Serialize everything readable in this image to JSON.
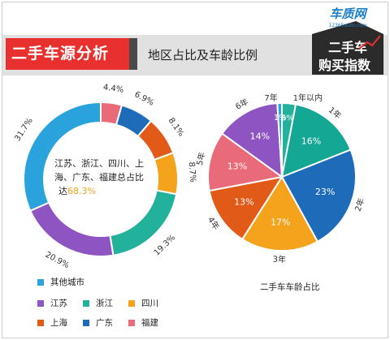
{
  "header": {
    "title": "二手车源分析",
    "subtitle": "地区占比及车龄比例"
  },
  "logo": {
    "brand": "车质网",
    "url": "12365auto.com",
    "line1": "二手车",
    "line2": "购买指数",
    "accent": "#e8312f"
  },
  "center_text": {
    "line1": "江苏、浙江、四川、上",
    "line2": "海、广东、福建总占比",
    "line3_prefix": "达",
    "line3_value": "68.3%",
    "value_color": "#f5a21c"
  },
  "legend": {
    "items": [
      {
        "label": "其他城市",
        "color": "#2aa3dc"
      },
      {
        "label": "江苏",
        "color": "#8e55c2"
      },
      {
        "label": "浙江",
        "color": "#22b19a"
      },
      {
        "label": "四川",
        "color": "#f5a21c"
      },
      {
        "label": "上海",
        "color": "#e25a17"
      },
      {
        "label": "广东",
        "color": "#1d6bb9"
      },
      {
        "label": "福建",
        "color": "#e96a78"
      }
    ]
  },
  "right_caption": "二手车车龄占比",
  "chart_data": [
    {
      "type": "pie",
      "variant": "donut",
      "categories": [
        "福建",
        "广东",
        "上海",
        "四川",
        "浙江",
        "江苏",
        "其他城市"
      ],
      "values": [
        4.4,
        6.9,
        8.1,
        8.7,
        19.3,
        20.9,
        31.7
      ],
      "labels": [
        "4.4%",
        "6.9%",
        "8.1%",
        "8.7%",
        "19.3%",
        "20.9%",
        "31.7%"
      ],
      "colors": [
        "#e96a78",
        "#1d6bb9",
        "#e25a17",
        "#f5a21c",
        "#22b19a",
        "#8e55c2",
        "#2aa3dc"
      ],
      "legend_position": "bottom-left"
    },
    {
      "type": "pie",
      "title": "二手车车龄占比",
      "categories": [
        "1年以内",
        "1年",
        "2年",
        "3年",
        "4年",
        "5年",
        "6年",
        "7年"
      ],
      "values": [
        3,
        16,
        23,
        17,
        13,
        13,
        14,
        1
      ],
      "labels": [
        "3%",
        "16%",
        "23%",
        "17%",
        "13%",
        "13%",
        "14%",
        "1%"
      ],
      "colors": [
        "#22b19a",
        "#14a794",
        "#1d6bb9",
        "#f5a21c",
        "#e25a17",
        "#e96a78",
        "#8e55c2",
        "#2aa3dc"
      ]
    }
  ]
}
